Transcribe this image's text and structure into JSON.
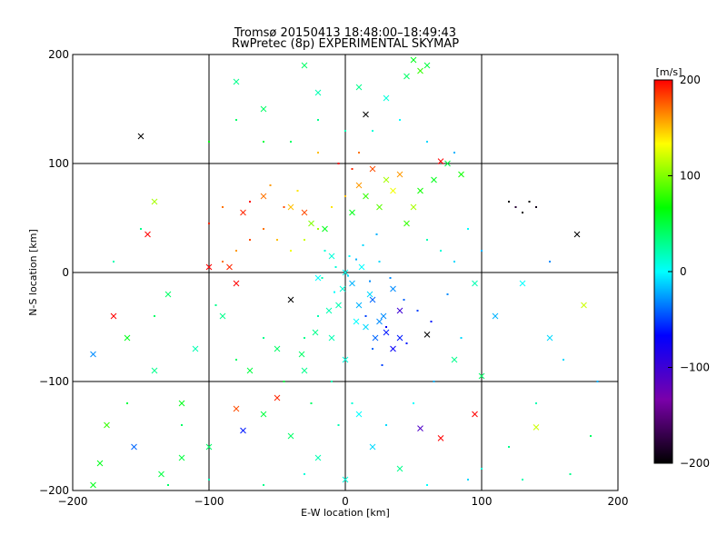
{
  "chart_data": {
    "type": "scatter",
    "title": "Tromsø 20150413 18:48:00–18:49:43",
    "subtitle": "RwPretec (8p) EXPERIMENTAL SKYMAP",
    "xlabel": "E-W location [km]",
    "ylabel": "N-S location [km]",
    "xlim": [
      -200,
      200
    ],
    "ylim": [
      -200,
      200
    ],
    "x_ticks": [
      -200,
      -100,
      0,
      100,
      200
    ],
    "y_ticks": [
      -200,
      -100,
      0,
      100,
      200
    ],
    "grid": true,
    "colorbar": {
      "label": "[m/s]",
      "range": [
        -200,
        200
      ],
      "ticks": [
        200,
        100,
        0,
        -100,
        -200
      ],
      "colors": [
        "#000000",
        "#7a00aa",
        "#0000ff",
        "#00ffff",
        "#00ff00",
        "#ffff00",
        "#ff0000"
      ]
    },
    "points": [
      [
        0,
        0,
        5,
        "x"
      ],
      [
        5,
        -10,
        -20,
        "x"
      ],
      [
        -10,
        15,
        10,
        "x"
      ],
      [
        20,
        -25,
        -40,
        "x"
      ],
      [
        12,
        5,
        0,
        "x"
      ],
      [
        -5,
        -30,
        20,
        "x"
      ],
      [
        30,
        -55,
        -60,
        "x"
      ],
      [
        40,
        -60,
        -60,
        "x"
      ],
      [
        35,
        -70,
        -70,
        "x"
      ],
      [
        25,
        -45,
        -30,
        "x"
      ],
      [
        -15,
        40,
        60,
        "x"
      ],
      [
        -30,
        55,
        180,
        "x"
      ],
      [
        -40,
        60,
        150,
        "x"
      ],
      [
        -25,
        45,
        100,
        "x"
      ],
      [
        10,
        80,
        160,
        "x"
      ],
      [
        20,
        95,
        180,
        "x"
      ],
      [
        30,
        85,
        110,
        "x"
      ],
      [
        15,
        70,
        80,
        "x"
      ],
      [
        -60,
        70,
        170,
        "x"
      ],
      [
        -75,
        55,
        190,
        "x"
      ],
      [
        -70,
        65,
        200,
        "."
      ],
      [
        -55,
        80,
        160,
        "."
      ],
      [
        -45,
        60,
        180,
        "."
      ],
      [
        -90,
        60,
        170,
        "."
      ],
      [
        -100,
        45,
        190,
        "."
      ],
      [
        -35,
        75,
        140,
        "."
      ],
      [
        5,
        95,
        190,
        "."
      ],
      [
        10,
        110,
        170,
        "."
      ],
      [
        -5,
        100,
        200,
        "."
      ],
      [
        -20,
        110,
        150,
        "."
      ],
      [
        50,
        195,
        60,
        "x"
      ],
      [
        55,
        185,
        80,
        "x"
      ],
      [
        45,
        180,
        40,
        "x"
      ],
      [
        60,
        190,
        50,
        "x"
      ],
      [
        -30,
        190,
        40,
        "x"
      ],
      [
        -80,
        175,
        30,
        "x"
      ],
      [
        -60,
        150,
        40,
        "x"
      ],
      [
        -20,
        165,
        20,
        "x"
      ],
      [
        10,
        170,
        30,
        "x"
      ],
      [
        30,
        160,
        10,
        "x"
      ],
      [
        -150,
        125,
        -200,
        "x"
      ],
      [
        170,
        35,
        -200,
        "x"
      ],
      [
        15,
        145,
        -200,
        "x"
      ],
      [
        -40,
        -25,
        -200,
        "x"
      ],
      [
        60,
        -57,
        -200,
        "x"
      ],
      [
        120,
        65,
        -200,
        "."
      ],
      [
        125,
        60,
        -180,
        "."
      ],
      [
        130,
        55,
        -200,
        "."
      ],
      [
        135,
        65,
        -200,
        "."
      ],
      [
        140,
        60,
        -190,
        "."
      ],
      [
        -170,
        -40,
        200,
        "x"
      ],
      [
        -145,
        35,
        200,
        "x"
      ],
      [
        -100,
        5,
        200,
        "x"
      ],
      [
        -85,
        5,
        190,
        "x"
      ],
      [
        -80,
        -10,
        200,
        "x"
      ],
      [
        -50,
        -115,
        190,
        "x"
      ],
      [
        -80,
        -125,
        180,
        "x"
      ],
      [
        70,
        -152,
        200,
        "x"
      ],
      [
        95,
        -130,
        200,
        "x"
      ],
      [
        70,
        102,
        200,
        "x"
      ],
      [
        -180,
        -175,
        60,
        "x"
      ],
      [
        -175,
        -140,
        80,
        "x"
      ],
      [
        -155,
        -160,
        -40,
        "x"
      ],
      [
        -135,
        -185,
        50,
        "x"
      ],
      [
        -120,
        -170,
        50,
        "x"
      ],
      [
        -185,
        -195,
        60,
        "x"
      ],
      [
        140,
        -142,
        120,
        "x"
      ],
      [
        175,
        -30,
        120,
        "x"
      ],
      [
        -140,
        65,
        110,
        "x"
      ],
      [
        -75,
        -145,
        -60,
        "x"
      ],
      [
        55,
        -143,
        -110,
        "x"
      ],
      [
        40,
        -35,
        -100,
        "x"
      ],
      [
        35,
        -15,
        -30,
        "x"
      ],
      [
        -20,
        -5,
        0,
        "x"
      ],
      [
        -10,
        -60,
        20,
        "x"
      ],
      [
        0,
        -80,
        10,
        "x"
      ],
      [
        -30,
        -90,
        30,
        "x"
      ],
      [
        -50,
        -70,
        40,
        "x"
      ],
      [
        -70,
        -90,
        50,
        "x"
      ],
      [
        -90,
        -40,
        30,
        "x"
      ],
      [
        -110,
        -70,
        20,
        "x"
      ],
      [
        -130,
        -20,
        40,
        "x"
      ],
      [
        -160,
        -60,
        60,
        "x"
      ],
      [
        -185,
        -75,
        -30,
        "x"
      ],
      [
        95,
        -10,
        20,
        "x"
      ],
      [
        110,
        -40,
        -20,
        "x"
      ],
      [
        130,
        -10,
        0,
        "x"
      ],
      [
        150,
        -60,
        -10,
        "x"
      ],
      [
        100,
        -95,
        40,
        "x"
      ],
      [
        80,
        -80,
        30,
        "x"
      ],
      [
        -40,
        -150,
        40,
        "x"
      ],
      [
        -20,
        -170,
        20,
        "x"
      ],
      [
        0,
        -190,
        10,
        "x"
      ],
      [
        20,
        -160,
        -10,
        "x"
      ],
      [
        40,
        -180,
        30,
        "x"
      ],
      [
        10,
        -130,
        0,
        "x"
      ],
      [
        -60,
        -130,
        50,
        "x"
      ],
      [
        -100,
        -160,
        40,
        "x"
      ],
      [
        -120,
        -120,
        60,
        "x"
      ],
      [
        -140,
        -90,
        30,
        "x"
      ],
      [
        2,
        -3,
        -10,
        "."
      ],
      [
        8,
        12,
        -20,
        "."
      ],
      [
        -8,
        -18,
        0,
        "."
      ],
      [
        18,
        -8,
        -30,
        "."
      ],
      [
        25,
        10,
        -10,
        "."
      ],
      [
        -15,
        20,
        10,
        "."
      ],
      [
        15,
        -40,
        -50,
        "."
      ],
      [
        30,
        -50,
        -70,
        "."
      ],
      [
        45,
        -65,
        -60,
        "."
      ],
      [
        20,
        -70,
        -40,
        "."
      ],
      [
        -20,
        -40,
        20,
        "."
      ],
      [
        -30,
        -60,
        30,
        "."
      ],
      [
        -10,
        -100,
        20,
        "."
      ],
      [
        5,
        -120,
        10,
        "."
      ],
      [
        -5,
        -140,
        20,
        "."
      ],
      [
        -25,
        -120,
        40,
        "."
      ],
      [
        -45,
        -100,
        50,
        "."
      ],
      [
        -60,
        -60,
        30,
        "."
      ],
      [
        -80,
        -80,
        40,
        "."
      ],
      [
        -95,
        -30,
        30,
        "."
      ],
      [
        60,
        30,
        20,
        "."
      ],
      [
        70,
        20,
        10,
        "."
      ],
      [
        80,
        10,
        -10,
        "."
      ],
      [
        90,
        40,
        0,
        "."
      ],
      [
        100,
        20,
        -20,
        "."
      ],
      [
        75,
        -20,
        -30,
        "."
      ],
      [
        85,
        -60,
        -10,
        "."
      ],
      [
        65,
        -100,
        -20,
        "."
      ],
      [
        50,
        -120,
        0,
        "."
      ],
      [
        30,
        -140,
        -10,
        "."
      ],
      [
        -40,
        120,
        40,
        "."
      ],
      [
        -20,
        140,
        30,
        "."
      ],
      [
        0,
        130,
        20,
        "."
      ],
      [
        20,
        130,
        10,
        "."
      ],
      [
        40,
        140,
        0,
        "."
      ],
      [
        60,
        120,
        -10,
        "."
      ],
      [
        80,
        110,
        -20,
        "."
      ],
      [
        -60,
        120,
        50,
        "."
      ],
      [
        -80,
        140,
        40,
        "."
      ],
      [
        -100,
        120,
        60,
        "."
      ],
      [
        -150,
        40,
        30,
        "."
      ],
      [
        -170,
        10,
        20,
        "."
      ],
      [
        -140,
        -40,
        40,
        "."
      ],
      [
        -120,
        -140,
        40,
        "."
      ],
      [
        -160,
        -120,
        50,
        "."
      ],
      [
        150,
        10,
        -30,
        "."
      ],
      [
        160,
        -80,
        -10,
        "."
      ],
      [
        140,
        -120,
        20,
        "."
      ],
      [
        120,
        -160,
        30,
        "."
      ],
      [
        100,
        -180,
        10,
        "."
      ],
      [
        -50,
        30,
        150,
        "."
      ],
      [
        -60,
        40,
        170,
        "."
      ],
      [
        -40,
        20,
        130,
        "."
      ],
      [
        -30,
        30,
        120,
        "."
      ],
      [
        -20,
        40,
        110,
        "."
      ],
      [
        -10,
        60,
        140,
        "."
      ],
      [
        0,
        70,
        150,
        "."
      ],
      [
        -70,
        30,
        180,
        "."
      ],
      [
        -80,
        20,
        160,
        "."
      ],
      [
        -90,
        10,
        170,
        "."
      ],
      [
        35,
        75,
        130,
        "x"
      ],
      [
        40,
        90,
        160,
        "x"
      ],
      [
        50,
        60,
        110,
        "x"
      ],
      [
        25,
        60,
        90,
        "x"
      ],
      [
        45,
        45,
        80,
        "x"
      ],
      [
        55,
        75,
        70,
        "x"
      ],
      [
        65,
        85,
        60,
        "x"
      ],
      [
        75,
        100,
        50,
        "x"
      ],
      [
        85,
        90,
        70,
        "x"
      ],
      [
        5,
        55,
        60,
        "x"
      ],
      [
        10,
        -30,
        -20,
        "x"
      ],
      [
        15,
        -50,
        -10,
        "x"
      ],
      [
        22,
        -60,
        -40,
        "x"
      ],
      [
        28,
        -40,
        -30,
        "x"
      ],
      [
        18,
        -20,
        -10,
        "x"
      ],
      [
        8,
        -45,
        0,
        "x"
      ],
      [
        -2,
        -15,
        10,
        "x"
      ],
      [
        -12,
        -35,
        20,
        "x"
      ],
      [
        -22,
        -55,
        30,
        "x"
      ],
      [
        -32,
        -75,
        40,
        "x"
      ],
      [
        3,
        15,
        0,
        "."
      ],
      [
        13,
        25,
        -10,
        "."
      ],
      [
        23,
        35,
        -20,
        "."
      ],
      [
        -7,
        5,
        10,
        "."
      ],
      [
        -17,
        -5,
        20,
        "."
      ],
      [
        33,
        -5,
        -30,
        "."
      ],
      [
        43,
        -25,
        -40,
        "."
      ],
      [
        53,
        -35,
        -50,
        "."
      ],
      [
        63,
        -45,
        -60,
        "."
      ],
      [
        27,
        -85,
        -50,
        "."
      ],
      [
        -130,
        -195,
        40,
        "."
      ],
      [
        -100,
        -190,
        20,
        "."
      ],
      [
        -60,
        -195,
        30,
        "."
      ],
      [
        -30,
        -185,
        10,
        "."
      ],
      [
        60,
        -195,
        0,
        "."
      ],
      [
        90,
        -190,
        -10,
        "."
      ],
      [
        130,
        -190,
        20,
        "."
      ],
      [
        165,
        -185,
        30,
        "."
      ],
      [
        180,
        -150,
        40,
        "."
      ],
      [
        185,
        -100,
        -20,
        "."
      ]
    ]
  }
}
